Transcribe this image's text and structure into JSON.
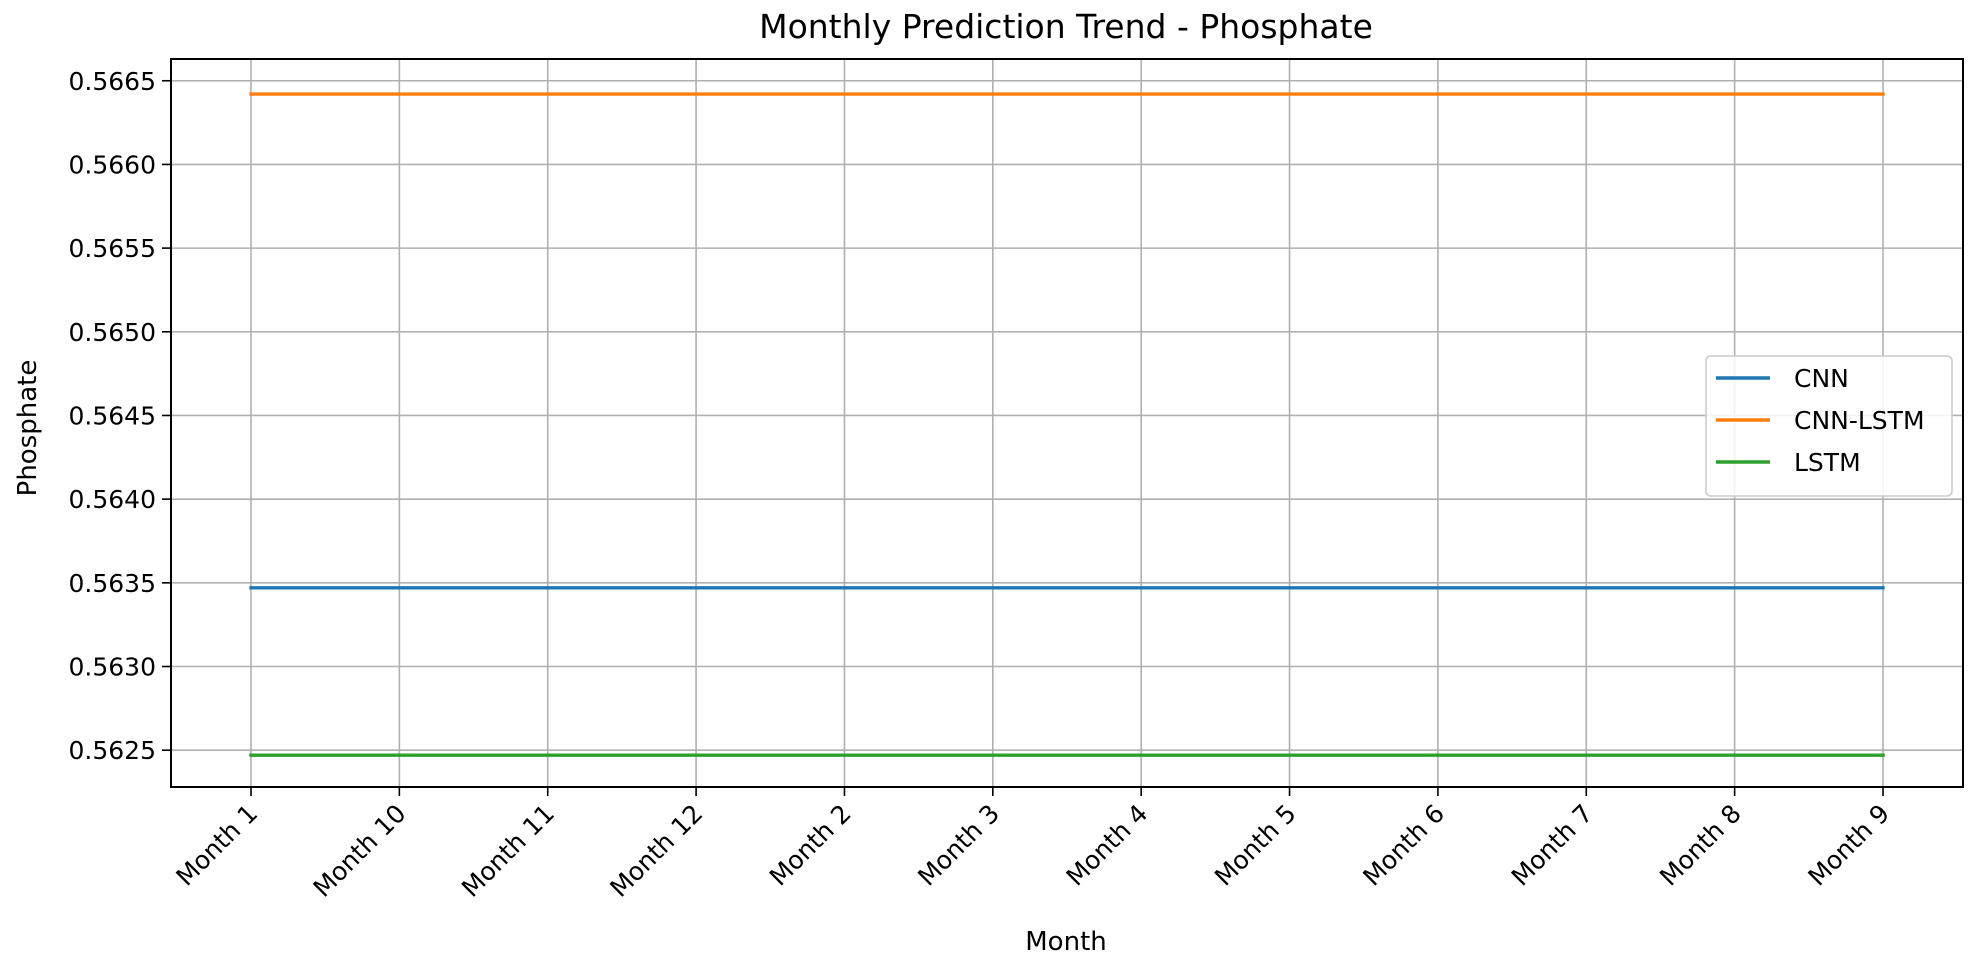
{
  "chart_data": {
    "type": "line",
    "title": "Monthly Prediction Trend - Phosphate",
    "xlabel": "Month",
    "ylabel": "Phosphate",
    "categories": [
      "Month 1",
      "Month 10",
      "Month 11",
      "Month 12",
      "Month 2",
      "Month 3",
      "Month 4",
      "Month 5",
      "Month 6",
      "Month 7",
      "Month 8",
      "Month 9"
    ],
    "ylim": [
      0.56228,
      0.56663
    ],
    "yticks": [
      "0.5625",
      "0.5630",
      "0.5635",
      "0.5640",
      "0.5645",
      "0.5650",
      "0.5655",
      "0.5660",
      "0.5665"
    ],
    "grid": true,
    "legend_position": "center-right",
    "series": [
      {
        "name": "CNN",
        "color": "#1f77b4",
        "values": [
          0.56347,
          0.56347,
          0.56347,
          0.56347,
          0.56347,
          0.56347,
          0.56347,
          0.56347,
          0.56347,
          0.56347,
          0.56347,
          0.56347
        ]
      },
      {
        "name": "CNN-LSTM",
        "color": "#ff7f0e",
        "values": [
          0.56642,
          0.56642,
          0.56642,
          0.56642,
          0.56642,
          0.56642,
          0.56642,
          0.56642,
          0.56642,
          0.56642,
          0.56642,
          0.56642
        ]
      },
      {
        "name": "LSTM",
        "color": "#2ca02c",
        "values": [
          0.56247,
          0.56247,
          0.56247,
          0.56247,
          0.56247,
          0.56247,
          0.56247,
          0.56247,
          0.56247,
          0.56247,
          0.56247,
          0.56247
        ]
      }
    ]
  }
}
